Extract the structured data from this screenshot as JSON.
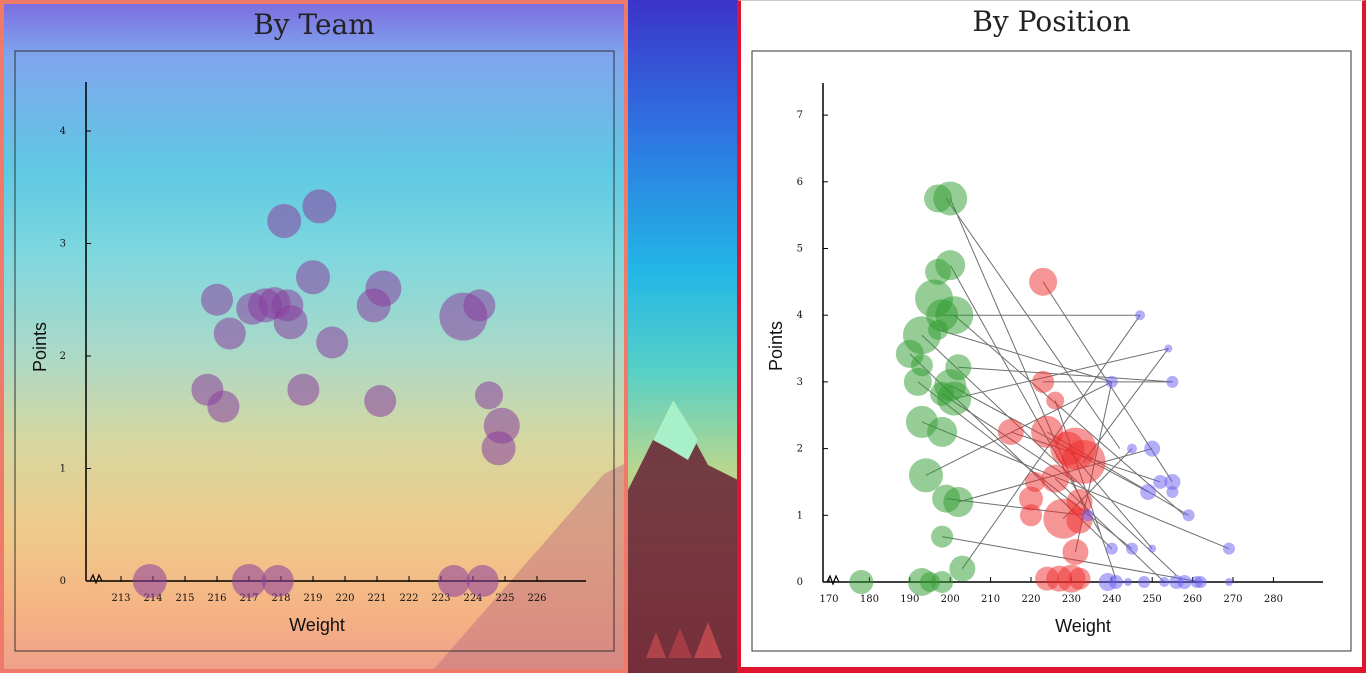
{
  "chart_data": [
    {
      "type": "scatter",
      "title": "By Team",
      "xlabel": "Weight",
      "ylabel": "Points",
      "xlim": [
        212,
        227
      ],
      "ylim": [
        0,
        4.4
      ],
      "x_ticks": [
        213,
        214,
        215,
        216,
        217,
        218,
        219,
        220,
        221,
        222,
        223,
        224,
        225,
        226
      ],
      "y_ticks": [
        0,
        1,
        2,
        3,
        4
      ],
      "axis_break": true,
      "grid": false,
      "color": "#8a3e9e",
      "points": [
        {
          "x": 219.2,
          "y": 3.33,
          "size": 17
        },
        {
          "x": 218.1,
          "y": 3.2,
          "size": 17
        },
        {
          "x": 216.0,
          "y": 2.5,
          "size": 16
        },
        {
          "x": 217.1,
          "y": 2.42,
          "size": 16
        },
        {
          "x": 217.5,
          "y": 2.45,
          "size": 17
        },
        {
          "x": 217.8,
          "y": 2.47,
          "size": 16
        },
        {
          "x": 218.2,
          "y": 2.45,
          "size": 16
        },
        {
          "x": 219.0,
          "y": 2.7,
          "size": 17
        },
        {
          "x": 218.3,
          "y": 2.3,
          "size": 17
        },
        {
          "x": 216.4,
          "y": 2.2,
          "size": 16
        },
        {
          "x": 219.6,
          "y": 2.12,
          "size": 16
        },
        {
          "x": 221.2,
          "y": 2.6,
          "size": 18
        },
        {
          "x": 220.9,
          "y": 2.45,
          "size": 17
        },
        {
          "x": 223.7,
          "y": 2.35,
          "size": 24
        },
        {
          "x": 224.2,
          "y": 2.45,
          "size": 16
        },
        {
          "x": 215.7,
          "y": 1.7,
          "size": 16
        },
        {
          "x": 216.2,
          "y": 1.55,
          "size": 16
        },
        {
          "x": 218.7,
          "y": 1.7,
          "size": 16
        },
        {
          "x": 221.1,
          "y": 1.6,
          "size": 16
        },
        {
          "x": 224.5,
          "y": 1.65,
          "size": 14
        },
        {
          "x": 224.9,
          "y": 1.38,
          "size": 18
        },
        {
          "x": 224.8,
          "y": 1.18,
          "size": 17
        },
        {
          "x": 213.9,
          "y": 0.0,
          "size": 17
        },
        {
          "x": 217.0,
          "y": 0.0,
          "size": 17
        },
        {
          "x": 217.9,
          "y": 0.0,
          "size": 16
        },
        {
          "x": 223.4,
          "y": 0.0,
          "size": 16
        },
        {
          "x": 224.3,
          "y": 0.0,
          "size": 16
        }
      ]
    },
    {
      "type": "scatter",
      "title": "By Position",
      "xlabel": "Weight",
      "ylabel": "Points",
      "xlim": [
        166,
        300
      ],
      "ylim": [
        0,
        7.5
      ],
      "x_ticks": [
        170,
        180,
        190,
        200,
        210,
        220,
        230,
        240,
        250,
        260,
        270,
        280
      ],
      "y_ticks": [
        0,
        1,
        2,
        3,
        4,
        5,
        6,
        7
      ],
      "axis_break": true,
      "grid": false,
      "groups": [
        {
          "color": "#2e9c2e",
          "points": [
            {
              "x": 197,
              "y": 5.75,
              "size": 14
            },
            {
              "x": 200,
              "y": 5.75,
              "size": 17
            },
            {
              "x": 197,
              "y": 4.65,
              "size": 13
            },
            {
              "x": 200,
              "y": 4.75,
              "size": 15
            },
            {
              "x": 196,
              "y": 4.25,
              "size": 19
            },
            {
              "x": 198,
              "y": 4.0,
              "size": 16
            },
            {
              "x": 201,
              "y": 4.0,
              "size": 19
            },
            {
              "x": 197,
              "y": 3.78,
              "size": 10
            },
            {
              "x": 193,
              "y": 3.7,
              "size": 19
            },
            {
              "x": 190,
              "y": 3.42,
              "size": 14
            },
            {
              "x": 193,
              "y": 3.25,
              "size": 11
            },
            {
              "x": 202,
              "y": 3.22,
              "size": 13
            },
            {
              "x": 200,
              "y": 2.95,
              "size": 16
            },
            {
              "x": 192,
              "y": 3.0,
              "size": 14
            },
            {
              "x": 198,
              "y": 2.82,
              "size": 12
            },
            {
              "x": 201,
              "y": 2.75,
              "size": 17
            },
            {
              "x": 193,
              "y": 2.4,
              "size": 16
            },
            {
              "x": 198,
              "y": 2.25,
              "size": 15
            },
            {
              "x": 194,
              "y": 1.6,
              "size": 17
            },
            {
              "x": 199,
              "y": 1.25,
              "size": 14
            },
            {
              "x": 202,
              "y": 1.2,
              "size": 15
            },
            {
              "x": 198,
              "y": 0.68,
              "size": 11
            },
            {
              "x": 203,
              "y": 0.2,
              "size": 13
            },
            {
              "x": 178,
              "y": 0.0,
              "size": 12
            },
            {
              "x": 193,
              "y": 0.0,
              "size": 14
            },
            {
              "x": 195,
              "y": 0.0,
              "size": 10
            },
            {
              "x": 198,
              "y": 0.0,
              "size": 11
            }
          ]
        },
        {
          "color": "#ee2b2b",
          "points": [
            {
              "x": 223,
              "y": 4.5,
              "size": 14
            },
            {
              "x": 223,
              "y": 3.0,
              "size": 11
            },
            {
              "x": 226,
              "y": 2.72,
              "size": 9
            },
            {
              "x": 215,
              "y": 2.25,
              "size": 13
            },
            {
              "x": 224,
              "y": 2.25,
              "size": 16
            },
            {
              "x": 229,
              "y": 2.0,
              "size": 17
            },
            {
              "x": 231,
              "y": 2.0,
              "size": 21
            },
            {
              "x": 233,
              "y": 1.8,
              "size": 22
            },
            {
              "x": 226,
              "y": 1.55,
              "size": 14
            },
            {
              "x": 221,
              "y": 1.5,
              "size": 10
            },
            {
              "x": 220,
              "y": 1.25,
              "size": 12
            },
            {
              "x": 232,
              "y": 1.2,
              "size": 13
            },
            {
              "x": 228,
              "y": 0.95,
              "size": 20
            },
            {
              "x": 232,
              "y": 0.92,
              "size": 13
            },
            {
              "x": 220,
              "y": 1.0,
              "size": 11
            },
            {
              "x": 231,
              "y": 0.45,
              "size": 13
            },
            {
              "x": 224,
              "y": 0.05,
              "size": 12
            },
            {
              "x": 227,
              "y": 0.05,
              "size": 13
            },
            {
              "x": 230,
              "y": 0.05,
              "size": 14
            },
            {
              "x": 232,
              "y": 0.05,
              "size": 11
            }
          ]
        },
        {
          "color": "#6a5cf0",
          "points": [
            {
              "x": 247,
              "y": 4.0,
              "size": 5
            },
            {
              "x": 254,
              "y": 3.5,
              "size": 4
            },
            {
              "x": 240,
              "y": 3.0,
              "size": 6
            },
            {
              "x": 255,
              "y": 3.0,
              "size": 6
            },
            {
              "x": 245,
              "y": 2.0,
              "size": 5
            },
            {
              "x": 250,
              "y": 2.0,
              "size": 8
            },
            {
              "x": 252,
              "y": 1.5,
              "size": 7
            },
            {
              "x": 255,
              "y": 1.5,
              "size": 8
            },
            {
              "x": 249,
              "y": 1.35,
              "size": 8
            },
            {
              "x": 255,
              "y": 1.35,
              "size": 6
            },
            {
              "x": 234,
              "y": 1.0,
              "size": 6
            },
            {
              "x": 259,
              "y": 1.0,
              "size": 6
            },
            {
              "x": 240,
              "y": 0.5,
              "size": 6
            },
            {
              "x": 245,
              "y": 0.5,
              "size": 6
            },
            {
              "x": 250,
              "y": 0.5,
              "size": 4
            },
            {
              "x": 269,
              "y": 0.5,
              "size": 6
            },
            {
              "x": 239,
              "y": 0.0,
              "size": 9
            },
            {
              "x": 241,
              "y": 0.0,
              "size": 7
            },
            {
              "x": 244,
              "y": 0.0,
              "size": 4
            },
            {
              "x": 248,
              "y": 0.0,
              "size": 6
            },
            {
              "x": 253,
              "y": 0.0,
              "size": 5
            },
            {
              "x": 256,
              "y": 0.0,
              "size": 7
            },
            {
              "x": 258,
              "y": 0.0,
              "size": 7
            },
            {
              "x": 261,
              "y": 0.0,
              "size": 6
            },
            {
              "x": 262,
              "y": 0.0,
              "size": 6
            },
            {
              "x": 269,
              "y": 0.0,
              "size": 4
            }
          ]
        }
      ],
      "connections": [
        [
          [
            199,
            5.75
          ],
          [
            242,
            2.0
          ]
        ],
        [
          [
            200,
            5.75
          ],
          [
            234,
            1.0
          ]
        ],
        [
          [
            200,
            4.75
          ],
          [
            237,
            0.75
          ]
        ],
        [
          [
            223,
            4.5
          ],
          [
            255,
            1.5
          ]
        ],
        [
          [
            198,
            4.0
          ],
          [
            247,
            4.0
          ]
        ],
        [
          [
            201,
            4.0
          ],
          [
            258,
            1.0
          ]
        ],
        [
          [
            197,
            3.78
          ],
          [
            240,
            3.0
          ]
        ],
        [
          [
            193,
            3.7
          ],
          [
            256,
            0.1
          ]
        ],
        [
          [
            190,
            3.42
          ],
          [
            240,
            0.5
          ]
        ],
        [
          [
            202,
            3.22
          ],
          [
            255,
            3.0
          ]
        ],
        [
          [
            200,
            2.95
          ],
          [
            249,
            1.35
          ]
        ],
        [
          [
            192,
            3.0
          ],
          [
            245,
            0.5
          ]
        ],
        [
          [
            198,
            2.82
          ],
          [
            231,
            1.5
          ]
        ],
        [
          [
            201,
            2.75
          ],
          [
            254,
            3.5
          ]
        ],
        [
          [
            193,
            2.4
          ],
          [
            269,
            0.5
          ]
        ],
        [
          [
            194,
            1.6
          ],
          [
            240,
            3.0
          ]
        ],
        [
          [
            199,
            1.25
          ],
          [
            233,
            1.0
          ]
        ],
        [
          [
            202,
            1.2
          ],
          [
            250,
            2.0
          ]
        ],
        [
          [
            198,
            0.68
          ],
          [
            262,
            0.0
          ]
        ],
        [
          [
            203,
            0.2
          ],
          [
            247,
            4.0
          ]
        ],
        [
          [
            226,
            2.72
          ],
          [
            241,
            0.05
          ]
        ],
        [
          [
            215,
            2.25
          ],
          [
            252,
            1.5
          ]
        ],
        [
          [
            224,
            2.25
          ],
          [
            259,
            1.0
          ]
        ],
        [
          [
            229,
            2.0
          ],
          [
            250,
            0.5
          ]
        ],
        [
          [
            233,
            1.8
          ],
          [
            254,
            3.5
          ]
        ],
        [
          [
            226,
            1.55
          ],
          [
            253,
            0.0
          ]
        ],
        [
          [
            228,
            0.95
          ],
          [
            245,
            2.0
          ]
        ],
        [
          [
            223,
            3.0
          ],
          [
            255,
            3.0
          ]
        ],
        [
          [
            231,
            0.45
          ],
          [
            240,
            3.0
          ]
        ]
      ]
    }
  ]
}
